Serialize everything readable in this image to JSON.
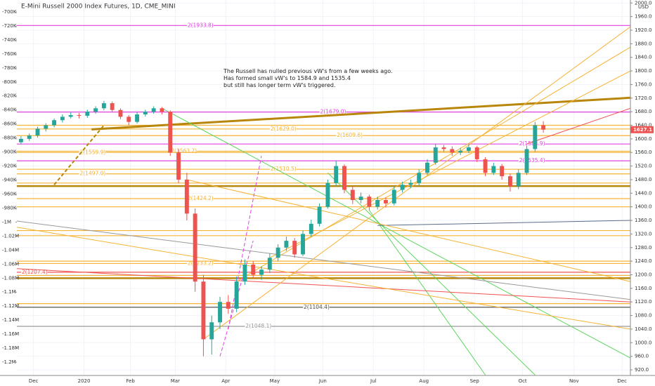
{
  "chart_data": {
    "type": "candlestick",
    "title": "E-Mini Russell 2000 Index Futures, 1D, CME_MINI",
    "currency": "USD",
    "annotation": [
      "The Russell has nulled previous vW's from a few weeks ago.",
      "Has formed small vW's to 1584.9 and 1535.4",
      "but still has longer term vW's triggered."
    ],
    "up_color": "#26a69a",
    "down_color": "#ef5350",
    "ohlc": [
      [
        1590,
        1608,
        1584,
        1600
      ],
      [
        1600,
        1616,
        1594,
        1610
      ],
      [
        1610,
        1636,
        1604,
        1630
      ],
      [
        1630,
        1646,
        1622,
        1640
      ],
      [
        1640,
        1660,
        1634,
        1655
      ],
      [
        1655,
        1672,
        1648,
        1665
      ],
      [
        1665,
        1678,
        1660,
        1670
      ],
      [
        1670,
        1676,
        1660,
        1668
      ],
      [
        1668,
        1686,
        1662,
        1680
      ],
      [
        1680,
        1696,
        1674,
        1690
      ],
      [
        1690,
        1712,
        1684,
        1705
      ],
      [
        1705,
        1710,
        1678,
        1685
      ],
      [
        1685,
        1690,
        1658,
        1665
      ],
      [
        1665,
        1670,
        1640,
        1650
      ],
      [
        1650,
        1678,
        1645,
        1672
      ],
      [
        1672,
        1686,
        1666,
        1680
      ],
      [
        1680,
        1696,
        1674,
        1690
      ],
      [
        1690,
        1694,
        1672,
        1680
      ],
      [
        1680,
        1684,
        1550,
        1560
      ],
      [
        1560,
        1570,
        1470,
        1480
      ],
      [
        1480,
        1500,
        1360,
        1380
      ],
      [
        1380,
        1395,
        1150,
        1180
      ],
      [
        1180,
        1200,
        960,
        1010
      ],
      [
        1010,
        1080,
        965,
        1060
      ],
      [
        1060,
        1135,
        1040,
        1120
      ],
      [
        1120,
        1140,
        1085,
        1100
      ],
      [
        1100,
        1195,
        1090,
        1180
      ],
      [
        1180,
        1245,
        1170,
        1230
      ],
      [
        1230,
        1240,
        1190,
        1200
      ],
      [
        1200,
        1225,
        1185,
        1215
      ],
      [
        1215,
        1262,
        1205,
        1250
      ],
      [
        1250,
        1290,
        1240,
        1280
      ],
      [
        1280,
        1312,
        1270,
        1300
      ],
      [
        1300,
        1308,
        1250,
        1260
      ],
      [
        1260,
        1330,
        1255,
        1320
      ],
      [
        1320,
        1362,
        1312,
        1350
      ],
      [
        1350,
        1410,
        1342,
        1400
      ],
      [
        1400,
        1480,
        1395,
        1470
      ],
      [
        1470,
        1535,
        1462,
        1520
      ],
      [
        1520,
        1525,
        1440,
        1450
      ],
      [
        1450,
        1462,
        1408,
        1420
      ],
      [
        1420,
        1442,
        1410,
        1430
      ],
      [
        1430,
        1436,
        1390,
        1400
      ],
      [
        1400,
        1430,
        1392,
        1420
      ],
      [
        1420,
        1428,
        1398,
        1410
      ],
      [
        1410,
        1460,
        1404,
        1450
      ],
      [
        1450,
        1474,
        1442,
        1465
      ],
      [
        1465,
        1480,
        1455,
        1470
      ],
      [
        1470,
        1510,
        1462,
        1500
      ],
      [
        1500,
        1540,
        1494,
        1530
      ],
      [
        1530,
        1585,
        1524,
        1575
      ],
      [
        1575,
        1582,
        1562,
        1570
      ],
      [
        1570,
        1578,
        1550,
        1560
      ],
      [
        1560,
        1574,
        1552,
        1565
      ],
      [
        1565,
        1584,
        1558,
        1575
      ],
      [
        1575,
        1580,
        1532,
        1540
      ],
      [
        1540,
        1546,
        1490,
        1500
      ],
      [
        1500,
        1530,
        1494,
        1520
      ],
      [
        1520,
        1526,
        1480,
        1490
      ],
      [
        1490,
        1498,
        1445,
        1460
      ],
      [
        1460,
        1510,
        1452,
        1500
      ],
      [
        1500,
        1580,
        1494,
        1570
      ],
      [
        1570,
        1650,
        1562,
        1640
      ],
      [
        1640,
        1652,
        1618,
        1627.1
      ]
    ],
    "xlim": [
      -0.5,
      73.5
    ],
    "xticks": [
      {
        "value": 1.5,
        "label": "Dec"
      },
      {
        "value": 7.6,
        "label": "2020"
      },
      {
        "value": 13.2,
        "label": "Feb"
      },
      {
        "value": 18.6,
        "label": "Mar"
      },
      {
        "value": 24.7,
        "label": "Apr"
      },
      {
        "value": 30.6,
        "label": "May"
      },
      {
        "value": 36.4,
        "label": "Jun"
      },
      {
        "value": 42.5,
        "label": "Jul"
      },
      {
        "value": 48.6,
        "label": "Aug"
      },
      {
        "value": 54.7,
        "label": "Sep"
      },
      {
        "value": 60.5,
        "label": "Oct"
      },
      {
        "value": 66.7,
        "label": "Nov"
      },
      {
        "value": 72.5,
        "label": "Dec"
      }
    ],
    "ylim": [
      903.5,
      2008.8
    ],
    "yticks": [
      {
        "value": 2000,
        "label": "2000.0"
      },
      {
        "value": 1960,
        "label": "1960.0"
      },
      {
        "value": 1920,
        "label": "1920.0"
      },
      {
        "value": 1880,
        "label": "1880.0"
      },
      {
        "value": 1840,
        "label": "1840.0"
      },
      {
        "value": 1800,
        "label": "1800.0"
      },
      {
        "value": 1760,
        "label": "1760.0"
      },
      {
        "value": 1720,
        "label": "1720.0"
      },
      {
        "value": 1680,
        "label": "1680.0"
      },
      {
        "value": 1640,
        "label": "1640.0"
      },
      {
        "value": 1600,
        "label": "1600.0"
      },
      {
        "value": 1560,
        "label": "1560.0"
      },
      {
        "value": 1520,
        "label": "1520.0"
      },
      {
        "value": 1480,
        "label": "1480.0"
      },
      {
        "value": 1440,
        "label": "1440.0"
      },
      {
        "value": 1400,
        "label": "1400.0"
      },
      {
        "value": 1360,
        "label": "1360.0"
      },
      {
        "value": 1320,
        "label": "1320.0"
      },
      {
        "value": 1280,
        "label": "1280.0"
      },
      {
        "value": 1240,
        "label": "1240.0"
      },
      {
        "value": 1200,
        "label": "1200.0"
      },
      {
        "value": 1160,
        "label": "1160.0"
      },
      {
        "value": 1120,
        "label": "1120.0"
      },
      {
        "value": 1080,
        "label": "1080.0"
      },
      {
        "value": 1040,
        "label": "1040.0"
      },
      {
        "value": 1000,
        "label": "1000.0"
      },
      {
        "value": 960,
        "label": "960.0"
      },
      {
        "value": 920,
        "label": "920.0"
      }
    ],
    "y2lim": [
      -1219000,
      -683000
    ],
    "y2ticks": [
      {
        "value": -700000,
        "label": "-700K"
      },
      {
        "value": -720000,
        "label": "-720K"
      },
      {
        "value": -740000,
        "label": "-740K"
      },
      {
        "value": -760000,
        "label": "-760K"
      },
      {
        "value": -780000,
        "label": "-780K"
      },
      {
        "value": -800000,
        "label": "-800K"
      },
      {
        "value": -820000,
        "label": "-820K"
      },
      {
        "value": -840000,
        "label": "-840K"
      },
      {
        "value": -860000,
        "label": "-860K"
      },
      {
        "value": -880000,
        "label": "-880K"
      },
      {
        "value": -900000,
        "label": "-900K"
      },
      {
        "value": -920000,
        "label": "-920K"
      },
      {
        "value": -940000,
        "label": "-940K"
      },
      {
        "value": -960000,
        "label": "-960K"
      },
      {
        "value": -980000,
        "label": "-980K"
      },
      {
        "value": -1000000,
        "label": "-1M"
      },
      {
        "value": -1020000,
        "label": "-1.02M"
      },
      {
        "value": -1040000,
        "label": "-1.04M"
      },
      {
        "value": -1060000,
        "label": "-1.06M"
      },
      {
        "value": -1080000,
        "label": "-1.08M"
      },
      {
        "value": -1100000,
        "label": "-1.1M"
      },
      {
        "value": -1120000,
        "label": "-1.12M"
      },
      {
        "value": -1140000,
        "label": "-1.14M"
      },
      {
        "value": -1160000,
        "label": "-1.16M"
      },
      {
        "value": -1180000,
        "label": "-1.18M"
      },
      {
        "value": -1200000,
        "label": "-1.2M"
      }
    ],
    "levels": [
      {
        "value": 1933.8,
        "label": "2(1933.8)",
        "color": "#e040e0",
        "from": 20
      },
      {
        "value": 1679.0,
        "label": "2(1679.0)",
        "color": "#e040e0",
        "from": 36
      },
      {
        "value": 1629.0,
        "label": "2(1629.0)",
        "color": "#f5b335",
        "from": 30
      },
      {
        "value": 1609.6,
        "label": "2(1609.6)",
        "color": "#f5b335",
        "from": 38
      },
      {
        "value": 1584.9,
        "label": "2(1584.9)",
        "color": "#e040e0",
        "from": 60
      },
      {
        "value": 1563.7,
        "label": "2(1563.7)",
        "color": "#f5b335",
        "from": 18
      },
      {
        "value": 1559.9,
        "label": "2(1559.9)",
        "color": "#f5b335",
        "from": 7
      },
      {
        "value": 1535.4,
        "label": "2(1535.4)",
        "color": "#e040e0",
        "from": 60
      },
      {
        "value": 1510.5,
        "label": "2(1510.5)",
        "color": "#f5b335",
        "from": 30
      },
      {
        "value": 1497.0,
        "label": "2(1497.0)",
        "color": "#f5b335",
        "from": 7
      },
      {
        "value": 1424.2,
        "label": "2(1424.2)",
        "color": "#f5b335",
        "from": 20
      },
      {
        "value": 1233.2,
        "label": "2(1233.2)",
        "color": "#f5b335",
        "from": 20
      },
      {
        "value": 1207.4,
        "label": "2(1207.4)",
        "color": "#ef5350",
        "from": 0
      },
      {
        "value": 1104.4,
        "label": "2(1104.4)",
        "color": "#555555",
        "from": 34
      },
      {
        "value": 1048.1,
        "label": "2(1048.1)",
        "color": "#999999",
        "from": 27
      },
      {
        "value": 1461,
        "color": "#b8860b",
        "from": -0.5
      },
      {
        "value": 1640,
        "color": "#f5b335",
        "from": -0.5
      },
      {
        "value": 1470,
        "color": "#f5b335",
        "from": -0.5
      },
      {
        "value": 1400,
        "color": "#f5b335",
        "from": -0.5
      },
      {
        "value": 1330,
        "color": "#f5b335",
        "from": -0.5
      },
      {
        "value": 1315,
        "color": "#f5b335",
        "from": -0.5
      },
      {
        "value": 1240,
        "color": "#f5b335",
        "from": -0.5
      },
      {
        "value": 1198,
        "color": "#f5b335",
        "from": -0.5
      },
      {
        "value": 1190,
        "color": "#b8860b",
        "from": -0.5
      },
      {
        "value": 1115,
        "color": "#f5b335",
        "from": -0.5
      }
    ],
    "trendlines": [
      {
        "x": [
          8.5,
          73.5
        ],
        "y": [
          1628,
          1721
        ],
        "color": "#b8860b",
        "width": 3
      },
      {
        "x": [
          4,
          10
        ],
        "y": [
          1465,
          1640
        ],
        "color": "#b8860b",
        "width": 2,
        "dash": true
      },
      {
        "x": [
          17,
          73.5
        ],
        "y": [
          1690,
          955
        ],
        "color": "#5cd65c",
        "width": 1
      },
      {
        "x": [
          37,
          62
        ],
        "y": [
          1500,
          905
        ],
        "color": "#5cd65c",
        "width": 1
      },
      {
        "x": [
          42,
          56
        ],
        "y": [
          1390,
          905
        ],
        "color": "#5cd65c",
        "width": 1
      },
      {
        "x": [
          -0.5,
          73.5
        ],
        "y": [
          1218,
          1120
        ],
        "color": "#ef5350",
        "width": 1
      },
      {
        "x": [
          61,
          73.5
        ],
        "y": [
          1585,
          1690
        ],
        "color": "#ef5350",
        "width": 1
      },
      {
        "x": [
          -0.5,
          73.5
        ],
        "y": [
          1358,
          1127
        ],
        "color": "#999999",
        "width": 1
      },
      {
        "x": [
          43,
          73.5
        ],
        "y": [
          1345,
          1360
        ],
        "color": "#5c6b8a",
        "width": 1
      },
      {
        "x": [
          22,
          73.5
        ],
        "y": [
          1010,
          1930
        ],
        "color": "#f5b335",
        "width": 1
      },
      {
        "x": [
          30,
          73.5
        ],
        "y": [
          1250,
          1800
        ],
        "color": "#f5b335",
        "width": 1
      },
      {
        "x": [
          26,
          73.5
        ],
        "y": [
          1180,
          1870
        ],
        "color": "#f5b335",
        "width": 1
      },
      {
        "x": [
          -0.5,
          73.5
        ],
        "y": [
          1340,
          1040
        ],
        "color": "#f5b335",
        "width": 1
      },
      {
        "x": [
          20,
          73.5
        ],
        "y": [
          1480,
          1180
        ],
        "color": "#f5b335",
        "width": 1
      },
      {
        "x": [
          25,
          29
        ],
        "y": [
          1040,
          1550
        ],
        "color": "#e040e0",
        "width": 1,
        "dash": true
      },
      {
        "x": [
          24,
          28
        ],
        "y": [
          960,
          1300
        ],
        "color": "#e040e0",
        "width": 1,
        "dash": true
      }
    ]
  }
}
